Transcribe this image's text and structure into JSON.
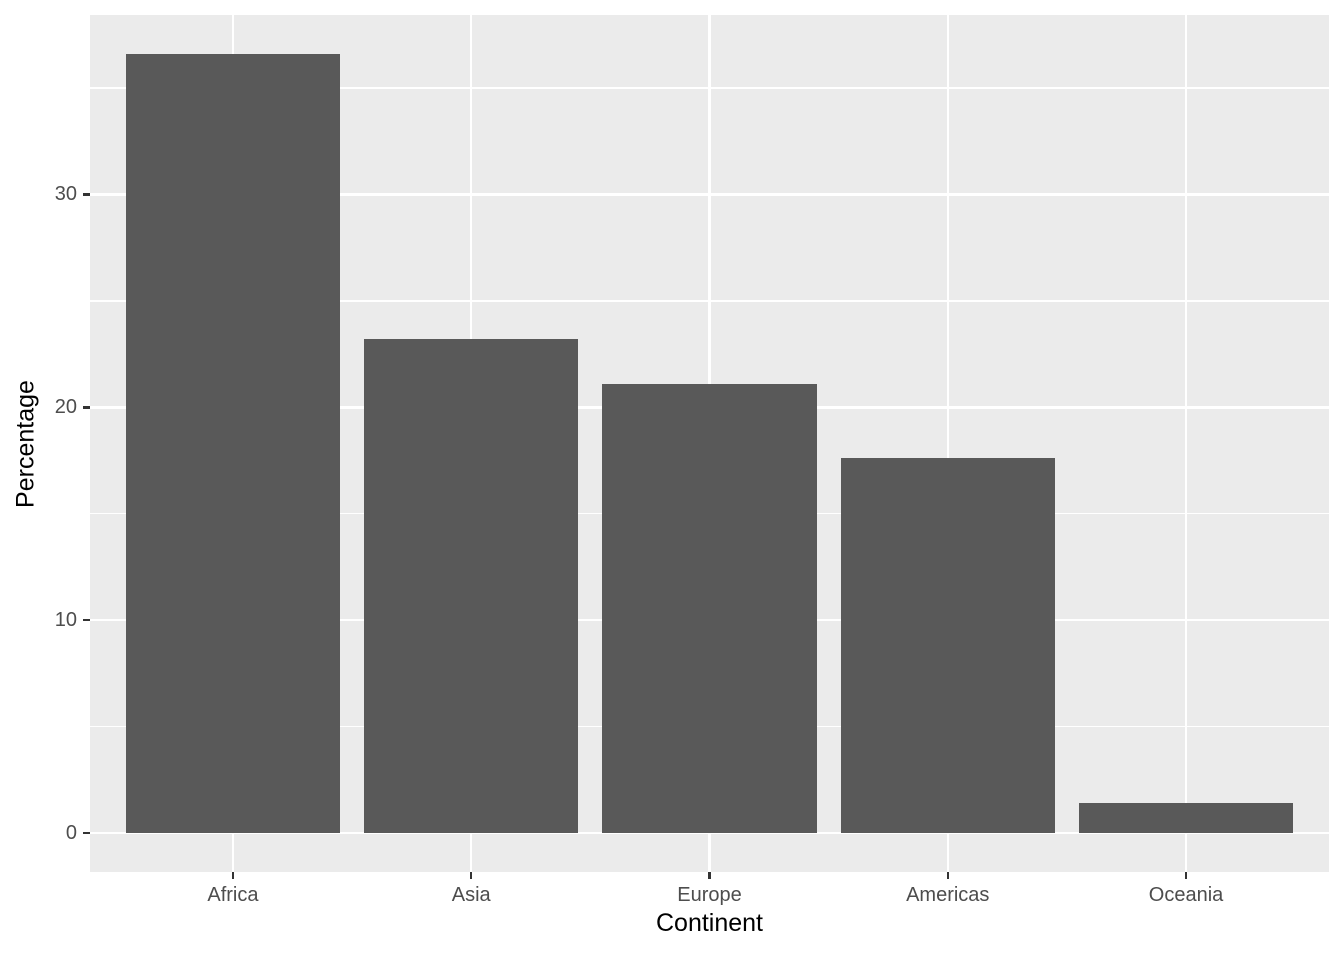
{
  "chart_data": {
    "type": "bar",
    "title": "",
    "xlabel": "Continent",
    "ylabel": "Percentage",
    "categories": [
      "Africa",
      "Asia",
      "Europe",
      "Americas",
      "Oceania"
    ],
    "values": [
      36.6,
      23.2,
      21.1,
      17.6,
      1.4
    ],
    "y_axis": {
      "tick_labels": [
        "0",
        "10",
        "20",
        "30"
      ],
      "major_ticks": [
        0,
        10,
        20,
        30
      ],
      "minor_gridlines": [
        5,
        15,
        25,
        35
      ],
      "range": [
        -1.83,
        38.43
      ]
    },
    "x_axis": {
      "tick_labels": [
        "Africa",
        "Asia",
        "Europe",
        "Americas",
        "Oceania"
      ]
    },
    "bar_width_fraction": 0.9,
    "legend": "none",
    "grid": "major-and-minor-horizontal, major-vertical",
    "colors": {
      "bar_fill": "#595959",
      "panel_background": "#EBEBEB",
      "gridline": "#FFFFFF",
      "tick_label": "#4D4D4D",
      "axis_title": "#000000",
      "tick_mark": "#333333",
      "page_background": "#FFFFFF"
    }
  }
}
